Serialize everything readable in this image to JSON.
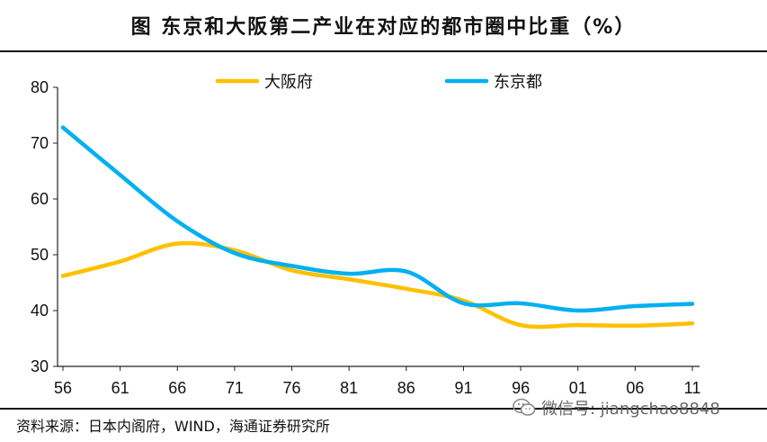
{
  "chart_data": {
    "type": "line",
    "title": "图    东京和大阪第二产业在对应的都市圈中比重（%）",
    "x": [
      "56",
      "61",
      "66",
      "71",
      "76",
      "81",
      "86",
      "91",
      "96",
      "01",
      "06",
      "11"
    ],
    "xlabel": "",
    "ylabel": "",
    "ylim": [
      30,
      80
    ],
    "yticks": [
      30,
      40,
      50,
      60,
      70,
      80
    ],
    "legend_position": "top",
    "series": [
      {
        "name": "大阪府",
        "color": "#FFC000",
        "values": [
          46.2,
          48.8,
          52.0,
          50.8,
          47.2,
          45.6,
          43.9,
          41.8,
          37.4,
          37.4,
          37.3,
          37.7
        ]
      },
      {
        "name": "东京都",
        "color": "#00B0F0",
        "values": [
          72.8,
          64.3,
          56.0,
          50.3,
          48.0,
          46.6,
          47.0,
          41.3,
          41.3,
          40.0,
          40.8,
          41.2
        ]
      }
    ]
  },
  "source": "资料来源：日本内阁府，WIND，海通证券研究所",
  "watermark": {
    "text": "微信号: jiangchao8848",
    "icon": "wechat-icon"
  }
}
